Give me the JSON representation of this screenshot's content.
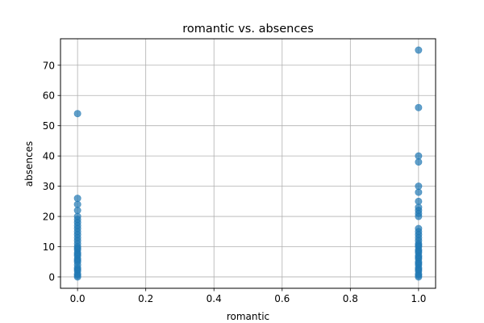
{
  "chart_data": {
    "type": "scatter",
    "title": "romantic vs. absences",
    "xlabel": "romantic",
    "ylabel": "absences",
    "xlim": [
      -0.05,
      1.05
    ],
    "ylim": [
      -3.75,
      78.75
    ],
    "xticks": [
      0.0,
      0.2,
      0.4,
      0.6,
      0.8,
      1.0
    ],
    "xtick_labels": [
      "0.0",
      "0.2",
      "0.4",
      "0.6",
      "0.8",
      "1.0"
    ],
    "yticks": [
      0,
      10,
      20,
      30,
      40,
      50,
      60,
      70
    ],
    "ytick_labels": [
      "0",
      "10",
      "20",
      "30",
      "40",
      "50",
      "60",
      "70"
    ],
    "grid": true,
    "marker_color": "#1f77b4",
    "marker_alpha": 0.7,
    "series": [
      {
        "x": [
          0,
          0,
          0,
          0,
          0,
          0,
          0,
          0,
          0,
          0,
          0,
          0,
          0,
          0,
          0,
          0,
          0,
          0,
          0,
          0,
          0,
          0,
          0,
          0,
          0,
          0,
          0,
          0,
          0,
          0,
          1,
          1,
          1,
          1,
          1,
          1,
          1,
          1,
          1,
          1,
          1,
          1,
          1,
          1,
          1,
          1,
          1,
          1,
          1,
          1,
          1,
          1,
          1,
          1,
          1,
          1,
          1,
          1,
          1,
          1,
          1,
          1,
          1,
          1
        ],
        "y": [
          0,
          1,
          2,
          3,
          4,
          5,
          6,
          7,
          8,
          9,
          10,
          11,
          12,
          13,
          14,
          15,
          16,
          17,
          18,
          19,
          20,
          22,
          24,
          26,
          54,
          0.5,
          2.5,
          5.5,
          7.5,
          9.5,
          0,
          1,
          2,
          3,
          4,
          5,
          6,
          7,
          8,
          9,
          10,
          11,
          12,
          13,
          14,
          15,
          16,
          20,
          21,
          22,
          23,
          25,
          28,
          30,
          38,
          40,
          56,
          75,
          0.5,
          2.5,
          4.5,
          6.5,
          8.5,
          10.5
        ]
      }
    ]
  }
}
